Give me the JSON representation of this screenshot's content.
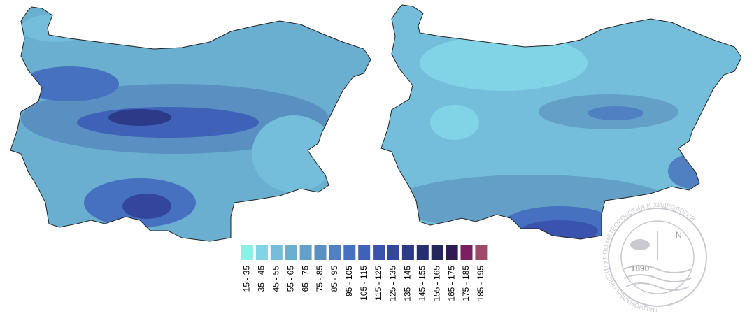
{
  "legend": {
    "items": [
      {
        "label": "15 - 35",
        "color": "#8ef0e4"
      },
      {
        "label": "35 - 45",
        "color": "#80d4e6"
      },
      {
        "label": "45 - 55",
        "color": "#74bedb"
      },
      {
        "label": "55 - 65",
        "color": "#6aaed0"
      },
      {
        "label": "65 - 75",
        "color": "#639fc6"
      },
      {
        "label": "75 - 85",
        "color": "#5a8fc2"
      },
      {
        "label": "85 - 95",
        "color": "#5080c2"
      },
      {
        "label": "95 - 105",
        "color": "#4670c0"
      },
      {
        "label": "105 - 115",
        "color": "#3f61b8"
      },
      {
        "label": "115 - 125",
        "color": "#3a54ae"
      },
      {
        "label": "125 - 135",
        "color": "#33459c"
      },
      {
        "label": "135 - 145",
        "color": "#2c3a88"
      },
      {
        "label": "145 - 155",
        "color": "#263070"
      },
      {
        "label": "155 - 165",
        "color": "#22285c"
      },
      {
        "label": "165 - 175",
        "color": "#2c1c50"
      },
      {
        "label": "175 - 185",
        "color": "#7a2060"
      },
      {
        "label": "185 - 195",
        "color": "#a04a6a"
      }
    ]
  },
  "logo": {
    "ring_text": "НАЦИОНАЛЕН ИНСТИТУТ ПО МЕТЕОРОЛОГИЯ И ХИДРОЛОГИЯ",
    "year": "1890",
    "north": "N"
  }
}
